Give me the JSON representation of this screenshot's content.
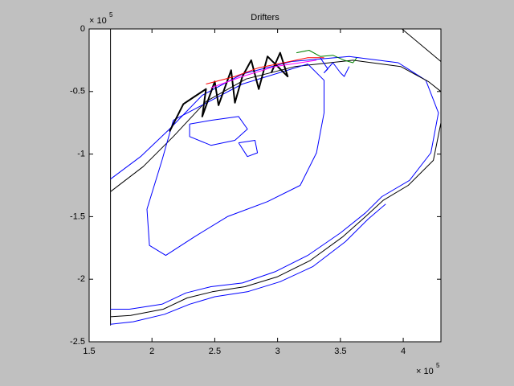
{
  "chart_data": {
    "type": "line",
    "title": "Drifters",
    "xlim": [
      1.5,
      4.3
    ],
    "ylim": [
      -2.5,
      0
    ],
    "xticks": [
      1.5,
      2,
      2.5,
      3,
      3.5,
      4
    ],
    "yticks": [
      -2.5,
      -2,
      -1.5,
      -1,
      -0.5,
      0
    ],
    "x_multiplier": "× 10",
    "x_multiplier_exp": "5",
    "y_multiplier": "× 10",
    "y_multiplier_exp": "5",
    "grid": false,
    "legend": false,
    "series": [
      {
        "color": "#000000",
        "x": [
          1.67,
          1.67
        ],
        "values": [
          0,
          -2.37
        ]
      },
      {
        "color": "#000000",
        "x": [
          3.99,
          4.3
        ],
        "values": [
          0,
          -0.26
        ]
      },
      {
        "color": "#0000ff",
        "x": [
          1.67,
          1.91,
          2.14,
          2.4,
          2.72,
          3.11,
          3.57,
          3.96,
          4.18,
          4.28,
          4.22,
          4.05,
          3.83,
          3.7,
          3.5,
          3.24,
          2.98,
          2.72,
          2.47,
          2.27,
          2.08,
          1.82,
          1.67
        ],
        "values": [
          -1.2,
          -1.02,
          -0.8,
          -0.53,
          -0.36,
          -0.26,
          -0.22,
          -0.27,
          -0.41,
          -0.67,
          -0.99,
          -1.21,
          -1.34,
          -1.47,
          -1.63,
          -1.81,
          -1.94,
          -2.03,
          -2.06,
          -2.11,
          -2.2,
          -2.24,
          -2.24
        ]
      },
      {
        "color": "#000000",
        "x": [
          1.67,
          1.93,
          2.17,
          2.43,
          2.75,
          3.14,
          3.6,
          3.98,
          4.2,
          4.3,
          4.3,
          4.24,
          4.04,
          3.84,
          3.7,
          3.52,
          3.26,
          3.0,
          2.74,
          2.48,
          2.28,
          2.09,
          1.83,
          1.67
        ],
        "values": [
          -1.3,
          -1.1,
          -0.86,
          -0.58,
          -0.4,
          -0.3,
          -0.25,
          -0.3,
          -0.42,
          -0.5,
          -0.75,
          -1.05,
          -1.25,
          -1.37,
          -1.5,
          -1.66,
          -1.85,
          -1.98,
          -2.06,
          -2.1,
          -2.15,
          -2.24,
          -2.29,
          -2.3
        ]
      },
      {
        "color": "#0000ff",
        "x": [
          3.86,
          3.72,
          3.54,
          3.28,
          3.02,
          2.76,
          2.5,
          2.3,
          2.1,
          1.85,
          1.67
        ],
        "values": [
          -1.4,
          -1.52,
          -1.7,
          -1.9,
          -2.02,
          -2.1,
          -2.14,
          -2.2,
          -2.28,
          -2.34,
          -2.36
        ]
      },
      {
        "color": "#0000ff",
        "x": [
          2.17,
          2.72,
          3.24,
          3.37,
          3.37,
          3.31,
          3.18,
          2.92,
          2.6,
          2.34,
          2.11,
          1.98,
          1.96,
          2.08,
          2.17
        ],
        "values": [
          -0.73,
          -0.44,
          -0.28,
          -0.41,
          -0.67,
          -0.99,
          -1.25,
          -1.38,
          -1.5,
          -1.66,
          -1.81,
          -1.73,
          -1.44,
          -1.05,
          -0.73
        ]
      },
      {
        "color": "#0000ff",
        "x": [
          2.3,
          2.47,
          2.69,
          2.76,
          2.66,
          2.47,
          2.3,
          2.3
        ],
        "values": [
          -0.76,
          -0.73,
          -0.7,
          -0.8,
          -0.89,
          -0.93,
          -0.86,
          -0.76
        ]
      },
      {
        "color": "#0000ff",
        "x": [
          2.69,
          2.82,
          2.84,
          2.76,
          2.69
        ],
        "values": [
          -0.91,
          -0.89,
          -0.99,
          -1.02,
          -0.91
        ]
      },
      {
        "color": "#000000",
        "x": [
          2.14,
          2.25,
          2.34,
          2.43,
          2.4,
          2.5,
          2.53,
          2.63,
          2.66,
          2.72,
          2.79,
          2.85,
          2.92,
          3.08,
          3.02,
          2.95
        ],
        "values": [
          -0.82,
          -0.6,
          -0.54,
          -0.48,
          -0.7,
          -0.42,
          -0.61,
          -0.33,
          -0.59,
          -0.38,
          -0.25,
          -0.48,
          -0.22,
          -0.38,
          -0.19,
          -0.35
        ]
      },
      {
        "color": "#008000",
        "x": [
          3.15,
          3.25,
          3.34,
          3.44,
          3.53,
          3.6,
          3.63
        ],
        "values": [
          -0.19,
          -0.17,
          -0.22,
          -0.21,
          -0.25,
          -0.27,
          -0.23
        ]
      },
      {
        "color": "#ff0000",
        "x": [
          2.43,
          2.66,
          2.85,
          3.05,
          3.24,
          3.37
        ],
        "values": [
          -0.44,
          -0.38,
          -0.31,
          -0.27,
          -0.23,
          -0.23
        ]
      },
      {
        "color": "#ff00ff",
        "x": [
          2.47,
          2.72,
          2.98,
          3.31
        ],
        "values": [
          -0.47,
          -0.38,
          -0.3,
          -0.25
        ]
      },
      {
        "color": "#0000ff",
        "x": [
          3.34,
          3.4,
          3.37,
          3.44,
          3.5,
          3.53,
          3.57
        ],
        "values": [
          -0.23,
          -0.32,
          -0.35,
          -0.27,
          -0.35,
          -0.38,
          -0.3
        ]
      }
    ]
  }
}
